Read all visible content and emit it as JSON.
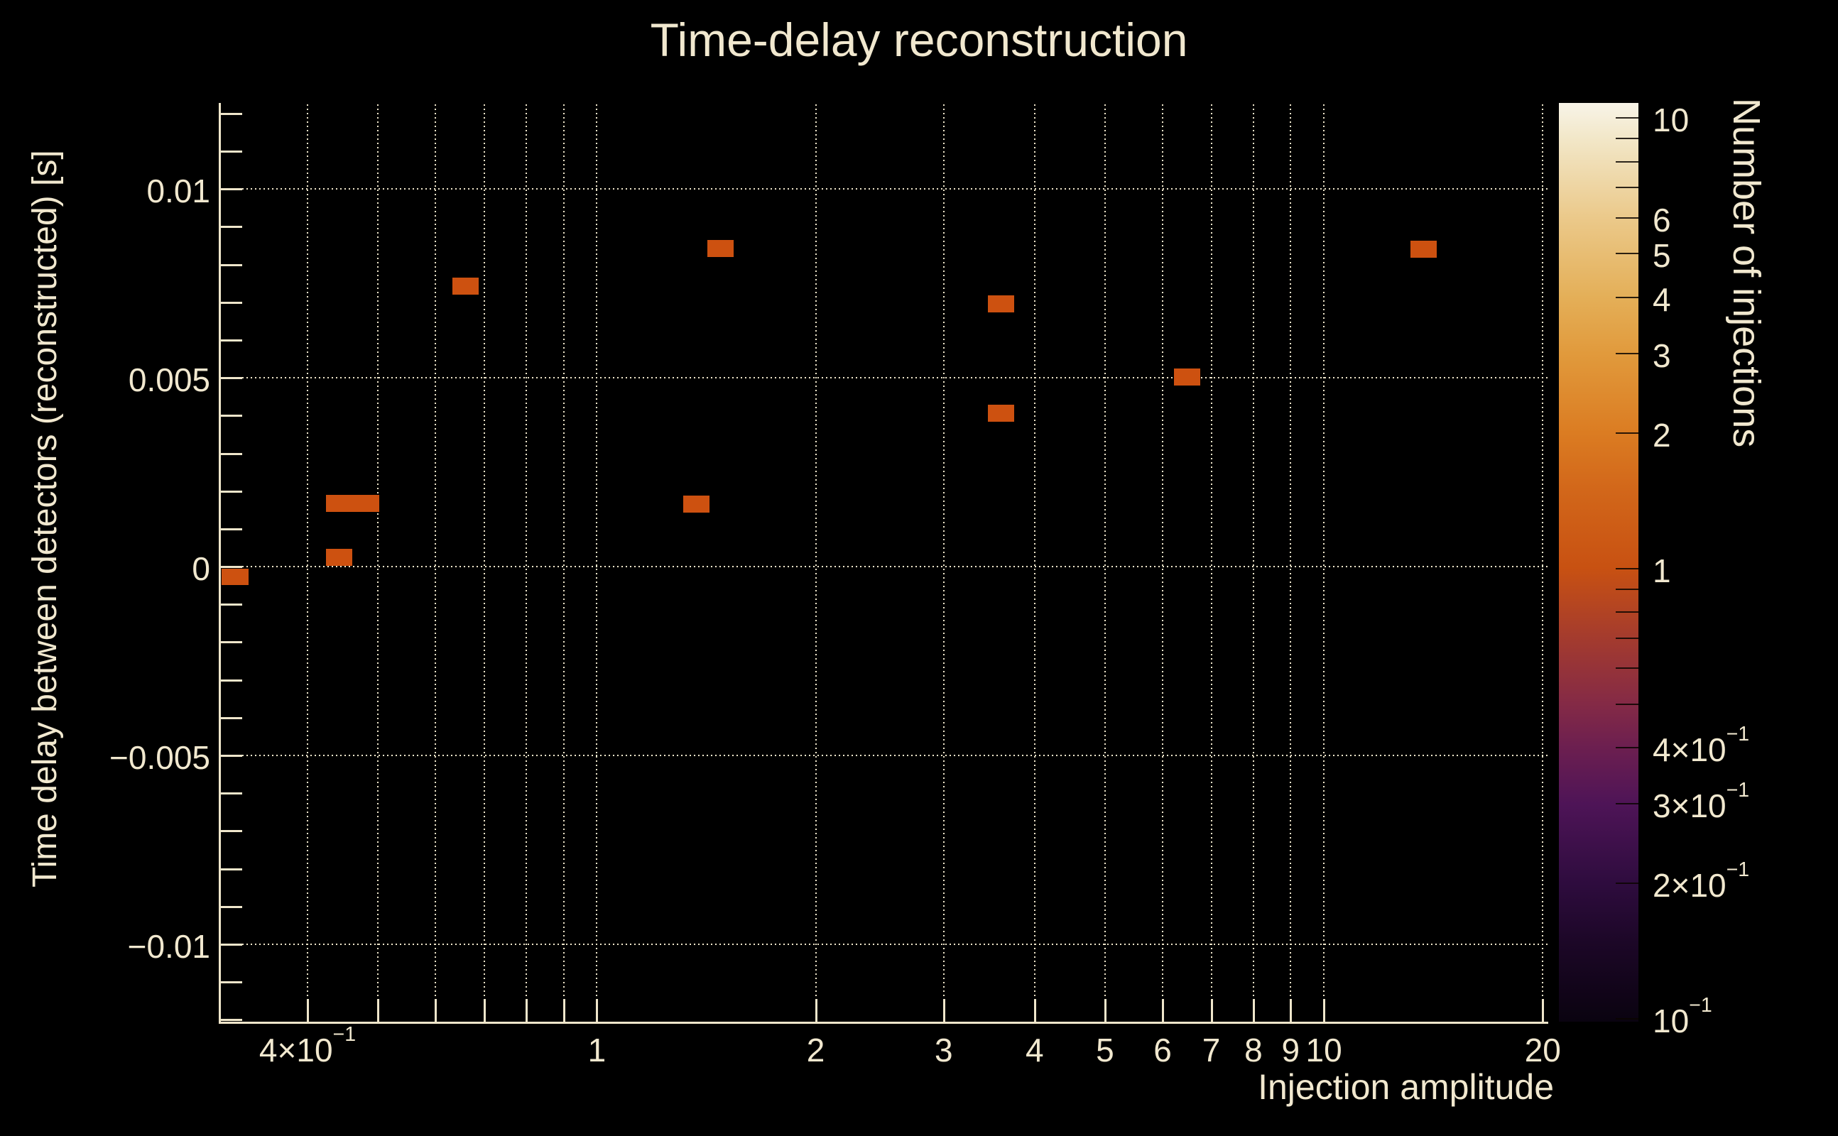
{
  "title": "Time-delay reconstruction",
  "colors": {
    "background": "#000000",
    "foreground": "#f1e8cf",
    "grid": "#efe6cb",
    "point_fill": "#cd5110"
  },
  "chart_data": {
    "type": "heatmap",
    "title": "Time-delay reconstruction",
    "xlabel": "Injection amplitude",
    "ylabel": "Time delay between detectors (reconstructed) [s]",
    "zlabel": "Number of injections",
    "xscale": "log",
    "yscale": "linear",
    "zscale": "log",
    "grid": true,
    "xlim": [
      0.304,
      20.35
    ],
    "ylim": [
      -0.01205,
      0.01228
    ],
    "zlim": [
      0.0986,
      10.8
    ],
    "x_ticks": [
      {
        "v": 0.4,
        "label": "4×10",
        "sup": "−1"
      },
      {
        "v": 0.5
      },
      {
        "v": 0.6
      },
      {
        "v": 0.7
      },
      {
        "v": 0.8
      },
      {
        "v": 0.9
      },
      {
        "v": 1,
        "label": "1"
      },
      {
        "v": 2,
        "label": "2"
      },
      {
        "v": 3,
        "label": "3"
      },
      {
        "v": 4,
        "label": "4"
      },
      {
        "v": 5,
        "label": "5"
      },
      {
        "v": 6,
        "label": "6"
      },
      {
        "v": 7,
        "label": "7"
      },
      {
        "v": 8,
        "label": "8"
      },
      {
        "v": 9,
        "label": "9"
      },
      {
        "v": 10,
        "label": "10"
      },
      {
        "v": 20,
        "label": "20"
      }
    ],
    "y_major_ticks": [
      {
        "v": 0.01,
        "label": "0.01"
      },
      {
        "v": 0.005,
        "label": "0.005"
      },
      {
        "v": 0,
        "label": "0"
      },
      {
        "v": -0.005,
        "label": "−0.005"
      },
      {
        "v": -0.01,
        "label": "−0.01"
      }
    ],
    "y_minor_step": 0.001,
    "bin": {
      "width_decades": 0.0362,
      "height": 0.00045
    },
    "points": [
      {
        "x": 0.318,
        "y": -0.00027,
        "n": 1
      },
      {
        "x": 0.442,
        "y": 0.00024,
        "n": 1
      },
      {
        "x": 0.442,
        "y": 0.00167,
        "n": 1
      },
      {
        "x": 0.481,
        "y": 0.00167,
        "n": 1
      },
      {
        "x": 0.66,
        "y": 0.00743,
        "n": 1
      },
      {
        "x": 1.37,
        "y": 0.00165,
        "n": 1
      },
      {
        "x": 1.48,
        "y": 0.00842,
        "n": 1
      },
      {
        "x": 3.6,
        "y": 0.00696,
        "n": 1
      },
      {
        "x": 3.6,
        "y": 0.00406,
        "n": 1
      },
      {
        "x": 6.49,
        "y": 0.00502,
        "n": 1
      },
      {
        "x": 13.7,
        "y": 0.0084,
        "n": 1
      }
    ],
    "colorbar": {
      "title": "Number of injections",
      "ticks": [
        {
          "v": 10,
          "label": "10"
        },
        {
          "v": 9
        },
        {
          "v": 8
        },
        {
          "v": 7
        },
        {
          "v": 6,
          "label": "6"
        },
        {
          "v": 5,
          "label": "5"
        },
        {
          "v": 4,
          "label": "4"
        },
        {
          "v": 3,
          "label": "3"
        },
        {
          "v": 2,
          "label": "2"
        },
        {
          "v": 1,
          "label": "1"
        },
        {
          "v": 0.9
        },
        {
          "v": 0.8
        },
        {
          "v": 0.7
        },
        {
          "v": 0.6
        },
        {
          "v": 0.5
        },
        {
          "v": 0.4,
          "label": "4×10",
          "sup": "−1"
        },
        {
          "v": 0.3,
          "label": "3×10",
          "sup": "−1"
        },
        {
          "v": 0.2,
          "label": "2×10",
          "sup": "−1"
        },
        {
          "v": 0.1,
          "label": "10",
          "sup": "−1"
        }
      ],
      "gradient": [
        {
          "v": 0.0986,
          "c": "#0a0310"
        },
        {
          "v": 0.15,
          "c": "#1d0728"
        },
        {
          "v": 0.2,
          "c": "#2e0c3e"
        },
        {
          "v": 0.3,
          "c": "#4e1457"
        },
        {
          "v": 0.4,
          "c": "#6c1f50"
        },
        {
          "v": 0.5,
          "c": "#842a46"
        },
        {
          "v": 0.7,
          "c": "#a43b2e"
        },
        {
          "v": 1.0,
          "c": "#c85112"
        },
        {
          "v": 1.5,
          "c": "#d2671a"
        },
        {
          "v": 2.0,
          "c": "#db7c22"
        },
        {
          "v": 3.0,
          "c": "#e19a3c"
        },
        {
          "v": 4.0,
          "c": "#e4af58"
        },
        {
          "v": 6.0,
          "c": "#ebc98a"
        },
        {
          "v": 9.0,
          "c": "#f2e7c8"
        },
        {
          "v": 10.8,
          "c": "#f8f4e8"
        }
      ]
    }
  }
}
